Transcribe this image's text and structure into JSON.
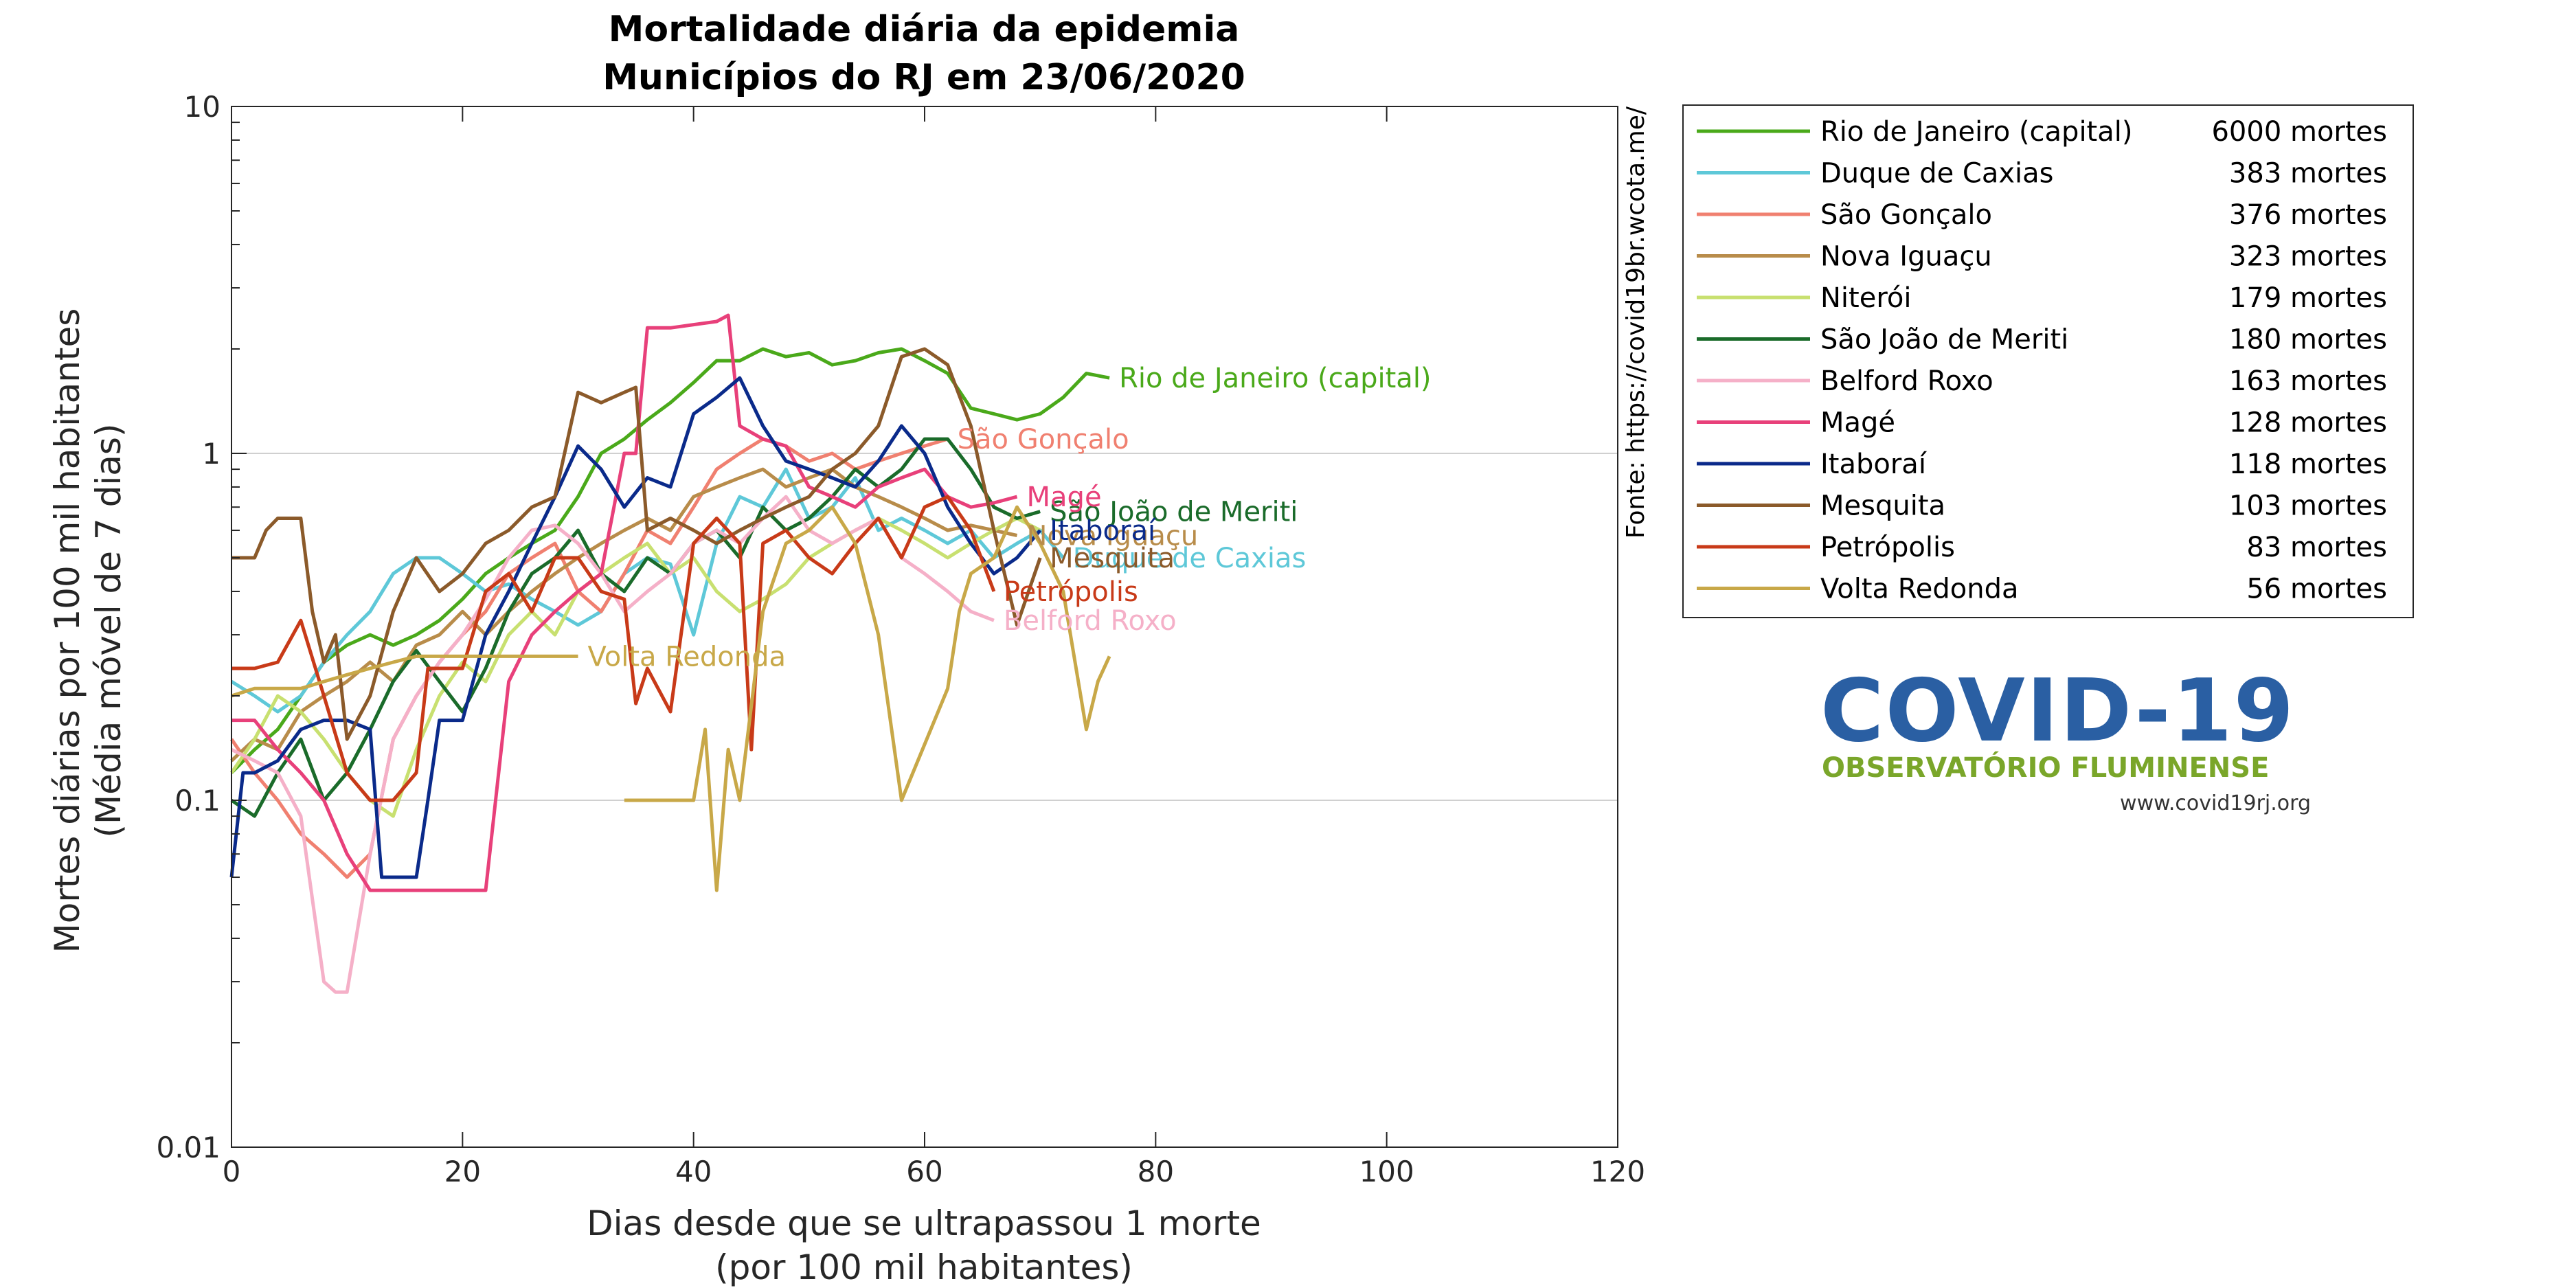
{
  "chart_data": {
    "type": "line",
    "title": "Mortalidade diária da epidemia",
    "subtitle": "Municípios do RJ em 23/06/2020",
    "xlabel": "Dias desde que se ultrapassou 1 morte",
    "xlabel2": "(por 100 mil habitantes)",
    "ylabel": "Mortes diárias por 100 mil habitantes",
    "ylabel2": "(Média móvel de 7 dias)",
    "source": "Fonte: https://covid19br.wcota.me/",
    "xlim": [
      0,
      120
    ],
    "ylim": [
      0.01,
      10
    ],
    "yscale": "log",
    "xticks": [
      0,
      20,
      40,
      60,
      80,
      100,
      120
    ],
    "yticks": [
      0.01,
      0.1,
      1,
      10
    ],
    "ytick_labels": [
      "0.01",
      "0.1",
      "1",
      "10"
    ],
    "grid": "horizontal at decades",
    "legend_position": "right, outside plot",
    "series": [
      {
        "name": "Rio de Janeiro (capital)",
        "deaths": "6000 mortes",
        "label": "Rio de Janeiro (capital)",
        "color": "#4aa91a",
        "x": [
          0,
          2,
          4,
          6,
          8,
          10,
          12,
          14,
          16,
          18,
          20,
          22,
          24,
          26,
          28,
          30,
          32,
          34,
          36,
          38,
          40,
          42,
          44,
          46,
          48,
          50,
          52,
          54,
          56,
          58,
          60,
          62,
          64,
          66,
          68,
          70,
          72,
          74,
          76
        ],
        "y": [
          0.12,
          0.14,
          0.16,
          0.2,
          0.25,
          0.28,
          0.3,
          0.28,
          0.3,
          0.33,
          0.38,
          0.45,
          0.5,
          0.55,
          0.6,
          0.75,
          1.0,
          1.1,
          1.25,
          1.4,
          1.6,
          1.85,
          1.85,
          2.0,
          1.9,
          1.95,
          1.8,
          1.85,
          1.95,
          2.0,
          1.85,
          1.7,
          1.35,
          1.3,
          1.25,
          1.3,
          1.45,
          1.7,
          1.65
        ]
      },
      {
        "name": "Duque de Caxias",
        "deaths": "383 mortes",
        "label": "Duque de Caxias",
        "color": "#5ec8d8",
        "x": [
          0,
          2,
          4,
          6,
          8,
          10,
          12,
          14,
          16,
          18,
          20,
          22,
          24,
          26,
          28,
          30,
          32,
          34,
          36,
          38,
          40,
          42,
          44,
          46,
          48,
          50,
          52,
          54,
          56,
          58,
          60,
          62,
          64,
          66,
          68,
          70,
          72
        ],
        "y": [
          0.22,
          0.2,
          0.18,
          0.2,
          0.25,
          0.3,
          0.35,
          0.45,
          0.5,
          0.5,
          0.45,
          0.4,
          0.42,
          0.38,
          0.35,
          0.32,
          0.35,
          0.45,
          0.5,
          0.48,
          0.3,
          0.55,
          0.75,
          0.7,
          0.9,
          0.65,
          0.7,
          0.85,
          0.6,
          0.65,
          0.6,
          0.55,
          0.6,
          0.5,
          0.55,
          0.6,
          0.5
        ]
      },
      {
        "name": "São Gonçalo",
        "deaths": "376 mortes",
        "label": "São Gonçalo",
        "color": "#f08070",
        "x": [
          0,
          2,
          4,
          6,
          8,
          10,
          12,
          14,
          16,
          18,
          20,
          22,
          24,
          26,
          28,
          30,
          32,
          34,
          36,
          38,
          40,
          42,
          44,
          46,
          48,
          50,
          52,
          54,
          56,
          58,
          60,
          62
        ],
        "y": [
          0.15,
          0.12,
          0.1,
          0.08,
          0.07,
          0.06,
          0.07,
          0.15,
          0.2,
          0.25,
          0.3,
          0.35,
          0.45,
          0.5,
          0.55,
          0.4,
          0.35,
          0.45,
          0.6,
          0.55,
          0.7,
          0.9,
          1.0,
          1.1,
          1.05,
          0.95,
          1.0,
          0.9,
          0.95,
          1.0,
          1.05,
          1.1
        ]
      },
      {
        "name": "Nova Iguaçu",
        "deaths": "323 mortes",
        "label": "Nova Iguaçu",
        "color": "#b88c4a",
        "x": [
          0,
          2,
          4,
          6,
          8,
          10,
          12,
          14,
          16,
          18,
          20,
          22,
          24,
          26,
          28,
          30,
          32,
          34,
          36,
          38,
          40,
          42,
          44,
          46,
          48,
          50,
          52,
          54,
          56,
          58,
          60,
          62,
          64,
          66,
          68
        ],
        "y": [
          0.13,
          0.15,
          0.14,
          0.18,
          0.2,
          0.22,
          0.25,
          0.22,
          0.28,
          0.3,
          0.35,
          0.3,
          0.35,
          0.4,
          0.45,
          0.5,
          0.55,
          0.6,
          0.65,
          0.6,
          0.75,
          0.8,
          0.85,
          0.9,
          0.8,
          0.85,
          0.9,
          0.8,
          0.75,
          0.7,
          0.65,
          0.6,
          0.62,
          0.6,
          0.58
        ]
      },
      {
        "name": "Niterói",
        "deaths": "179 mortes",
        "label": "",
        "color": "#c8e070",
        "x": [
          0,
          2,
          4,
          6,
          8,
          10,
          12,
          14,
          16,
          18,
          20,
          22,
          24,
          26,
          28,
          30,
          32,
          34,
          36,
          38,
          40,
          42,
          44,
          46,
          48,
          50,
          52,
          54,
          56,
          58,
          60,
          62,
          64,
          66,
          68,
          70
        ],
        "y": [
          0.12,
          0.15,
          0.2,
          0.18,
          0.15,
          0.12,
          0.1,
          0.09,
          0.14,
          0.2,
          0.25,
          0.22,
          0.3,
          0.35,
          0.3,
          0.4,
          0.45,
          0.5,
          0.55,
          0.45,
          0.5,
          0.4,
          0.35,
          0.38,
          0.42,
          0.5,
          0.55,
          0.6,
          0.65,
          0.6,
          0.55,
          0.5,
          0.55,
          0.6,
          0.65,
          0.6
        ]
      },
      {
        "name": "São João de Meriti",
        "deaths": "180 mortes",
        "label": "São João de Meriti",
        "color": "#1a6b2a",
        "x": [
          0,
          2,
          4,
          6,
          8,
          10,
          12,
          14,
          16,
          18,
          20,
          22,
          24,
          26,
          28,
          30,
          32,
          34,
          36,
          38,
          40,
          42,
          44,
          46,
          48,
          50,
          52,
          54,
          56,
          58,
          60,
          62,
          64,
          66,
          68,
          70
        ],
        "y": [
          0.1,
          0.09,
          0.12,
          0.15,
          0.1,
          0.12,
          0.16,
          0.22,
          0.27,
          0.22,
          0.18,
          0.24,
          0.35,
          0.45,
          0.5,
          0.6,
          0.45,
          0.4,
          0.5,
          0.45,
          0.55,
          0.6,
          0.5,
          0.7,
          0.6,
          0.65,
          0.75,
          0.9,
          0.8,
          0.9,
          1.1,
          1.1,
          0.9,
          0.7,
          0.65,
          0.68
        ]
      },
      {
        "name": "Belford Roxo",
        "deaths": "163 mortes",
        "label": "Belford Roxo",
        "color": "#f5b0c8",
        "x": [
          0,
          2,
          4,
          6,
          8,
          9,
          10,
          12,
          14,
          16,
          18,
          20,
          22,
          24,
          26,
          28,
          30,
          32,
          34,
          36,
          38,
          40,
          42,
          44,
          46,
          48,
          50,
          52,
          54,
          56,
          58,
          60,
          62,
          64,
          66
        ],
        "y": [
          0.14,
          0.13,
          0.12,
          0.09,
          0.03,
          0.028,
          0.028,
          0.07,
          0.15,
          0.2,
          0.25,
          0.3,
          0.38,
          0.5,
          0.6,
          0.62,
          0.55,
          0.45,
          0.35,
          0.4,
          0.45,
          0.55,
          0.6,
          0.55,
          0.65,
          0.75,
          0.6,
          0.55,
          0.6,
          0.65,
          0.5,
          0.45,
          0.4,
          0.35,
          0.33
        ]
      },
      {
        "name": "Magé",
        "deaths": "128 mortes",
        "label": "Magé",
        "color": "#e8407a",
        "x": [
          0,
          2,
          4,
          6,
          8,
          10,
          12,
          14,
          16,
          18,
          20,
          22,
          24,
          26,
          28,
          30,
          32,
          34,
          35,
          36,
          38,
          40,
          42,
          43,
          44,
          46,
          48,
          50,
          52,
          54,
          56,
          58,
          60,
          62,
          64,
          66,
          68
        ],
        "y": [
          0.17,
          0.17,
          0.14,
          0.12,
          0.1,
          0.07,
          0.055,
          0.055,
          0.055,
          0.055,
          0.055,
          0.055,
          0.22,
          0.3,
          0.35,
          0.4,
          0.45,
          1.0,
          1.0,
          2.3,
          2.3,
          2.35,
          2.4,
          2.5,
          1.2,
          1.1,
          1.05,
          0.8,
          0.75,
          0.7,
          0.8,
          0.85,
          0.9,
          0.75,
          0.7,
          0.72,
          0.75
        ]
      },
      {
        "name": "Itaboraí",
        "deaths": "118 mortes",
        "label": "Itaboraí",
        "color": "#0a2a8a",
        "x": [
          0,
          1,
          2,
          4,
          6,
          8,
          10,
          12,
          13,
          14,
          16,
          17,
          18,
          20,
          22,
          24,
          26,
          28,
          30,
          32,
          34,
          36,
          38,
          40,
          42,
          44,
          46,
          48,
          50,
          52,
          54,
          56,
          58,
          60,
          62,
          64,
          66,
          68,
          70
        ],
        "y": [
          0.06,
          0.12,
          0.12,
          0.13,
          0.16,
          0.17,
          0.17,
          0.16,
          0.06,
          0.06,
          0.06,
          0.1,
          0.17,
          0.17,
          0.3,
          0.4,
          0.55,
          0.75,
          1.05,
          0.9,
          0.7,
          0.85,
          0.8,
          1.3,
          1.45,
          1.65,
          1.2,
          0.95,
          0.9,
          0.85,
          0.8,
          0.95,
          1.2,
          1.0,
          0.7,
          0.55,
          0.45,
          0.5,
          0.6
        ]
      },
      {
        "name": "Mesquita",
        "deaths": "103 mortes",
        "label": "Mesquita",
        "color": "#8b5a2a",
        "x": [
          0,
          2,
          3,
          4,
          6,
          7,
          8,
          9,
          10,
          12,
          14,
          16,
          18,
          20,
          22,
          24,
          26,
          28,
          30,
          32,
          34,
          35,
          36,
          38,
          40,
          42,
          44,
          46,
          48,
          50,
          52,
          54,
          56,
          58,
          60,
          62,
          64,
          66,
          68,
          70
        ],
        "y": [
          0.5,
          0.5,
          0.6,
          0.65,
          0.65,
          0.35,
          0.25,
          0.3,
          0.15,
          0.2,
          0.35,
          0.5,
          0.4,
          0.45,
          0.55,
          0.6,
          0.7,
          0.75,
          1.5,
          1.4,
          1.5,
          1.55,
          0.6,
          0.65,
          0.6,
          0.55,
          0.6,
          0.65,
          0.7,
          0.75,
          0.9,
          1.0,
          1.2,
          1.9,
          2.0,
          1.8,
          1.2,
          0.6,
          0.32,
          0.5
        ]
      },
      {
        "name": "Petrópolis",
        "deaths": "83 mortes",
        "label": "Petrópolis",
        "color": "#c83a18",
        "x": [
          0,
          2,
          4,
          6,
          8,
          10,
          12,
          14,
          16,
          17,
          18,
          20,
          22,
          24,
          26,
          28,
          30,
          32,
          34,
          35,
          36,
          38,
          40,
          42,
          44,
          45,
          46,
          48,
          50,
          52,
          54,
          56,
          58,
          60,
          62,
          64,
          66
        ],
        "y": [
          0.24,
          0.24,
          0.25,
          0.33,
          0.2,
          0.12,
          0.1,
          0.1,
          0.12,
          0.24,
          0.24,
          0.24,
          0.4,
          0.45,
          0.35,
          0.5,
          0.5,
          0.4,
          0.38,
          0.19,
          0.24,
          0.18,
          0.55,
          0.65,
          0.55,
          0.14,
          0.55,
          0.6,
          0.5,
          0.45,
          0.55,
          0.65,
          0.5,
          0.7,
          0.75,
          0.6,
          0.4
        ]
      },
      {
        "name": "Volta Redonda",
        "deaths": "56 mortes",
        "label": "Volta Redonda",
        "color": "#c8a848",
        "x": [
          0,
          2,
          4,
          6,
          8,
          10,
          12,
          14,
          16,
          18,
          20,
          22,
          24,
          26,
          28,
          30
        ],
        "y": [
          0.2,
          0.21,
          0.21,
          0.21,
          0.22,
          0.23,
          0.24,
          0.25,
          0.26,
          0.26,
          0.26,
          0.26,
          0.26,
          0.26,
          0.26,
          0.26
        ]
      },
      {
        "name": "Volta Redonda",
        "deaths": "",
        "label": "",
        "color": "#c8a848",
        "x": [
          34,
          36,
          38,
          40,
          41,
          42,
          43,
          44,
          46,
          48,
          50,
          52,
          54,
          56,
          58,
          62,
          63,
          64,
          66,
          68,
          70,
          72,
          74,
          75,
          76
        ],
        "y": [
          0.1,
          0.1,
          0.1,
          0.1,
          0.16,
          0.055,
          0.14,
          0.1,
          0.35,
          0.55,
          0.6,
          0.7,
          0.55,
          0.3,
          0.1,
          0.21,
          0.35,
          0.45,
          0.5,
          0.7,
          0.55,
          0.4,
          0.16,
          0.22,
          0.26
        ]
      }
    ]
  },
  "logo": {
    "title": "COVID-19",
    "subtitle": "OBSERVATÓRIO FLUMINENSE",
    "url": "www.covid19rj.org"
  }
}
